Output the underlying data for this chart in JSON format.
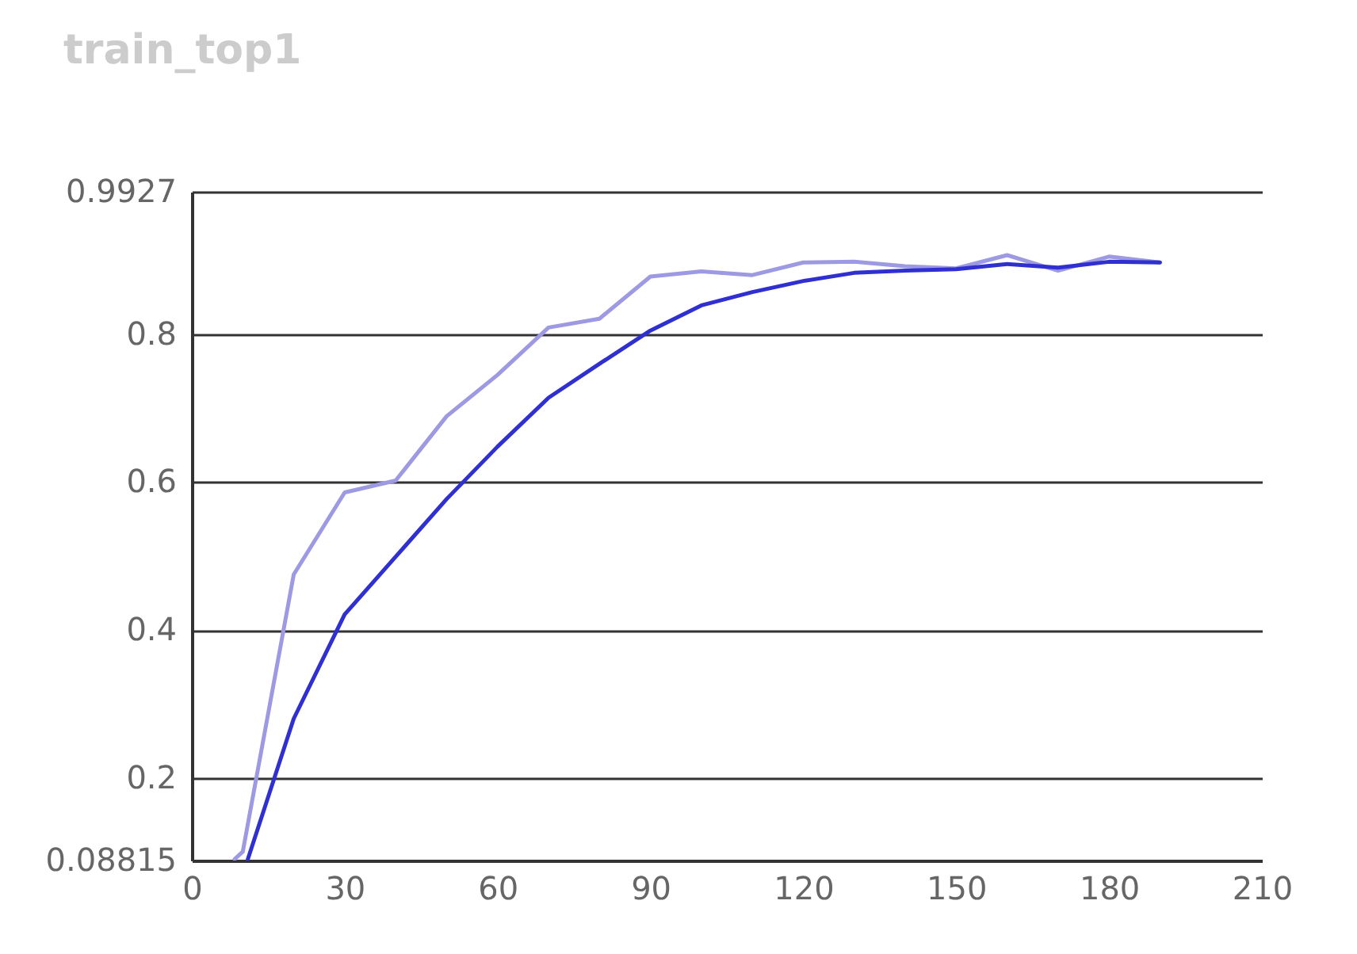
{
  "chart_data": {
    "type": "line",
    "title": "train_top1",
    "xlim": [
      0,
      210
    ],
    "xticks": [
      0,
      30,
      60,
      90,
      120,
      150,
      180,
      210
    ],
    "ylim": [
      0.08815,
      0.9927
    ],
    "yticks": [
      0.08815,
      0.2,
      0.4,
      0.6,
      0.8,
      0.9927
    ],
    "grid": "y",
    "marker": "none",
    "line_style": "solid",
    "series": [
      {
        "color": "#9d99e3",
        "x": [
          8.4,
          10,
          20,
          30,
          40,
          50,
          60,
          70,
          80,
          90,
          100,
          110,
          120,
          130,
          140,
          150,
          160,
          170,
          180,
          190
        ],
        "values": [
          0.09,
          0.1,
          0.475,
          0.586,
          0.602,
          0.689,
          0.745,
          0.809,
          0.821,
          0.878,
          0.885,
          0.88,
          0.897,
          0.898,
          0.892,
          0.889,
          0.907,
          0.886,
          0.905,
          0.897
        ]
      },
      {
        "color": "#3030d0",
        "x": [
          11,
          20,
          30,
          40,
          50,
          60,
          70,
          80,
          90,
          100,
          110,
          120,
          130,
          140,
          150,
          160,
          170,
          180,
          190
        ],
        "values": [
          0.09,
          0.28,
          0.421,
          0.499,
          0.577,
          0.648,
          0.714,
          0.76,
          0.805,
          0.839,
          0.857,
          0.872,
          0.883,
          0.886,
          0.888,
          0.895,
          0.89,
          0.898,
          0.897
        ]
      }
    ]
  }
}
